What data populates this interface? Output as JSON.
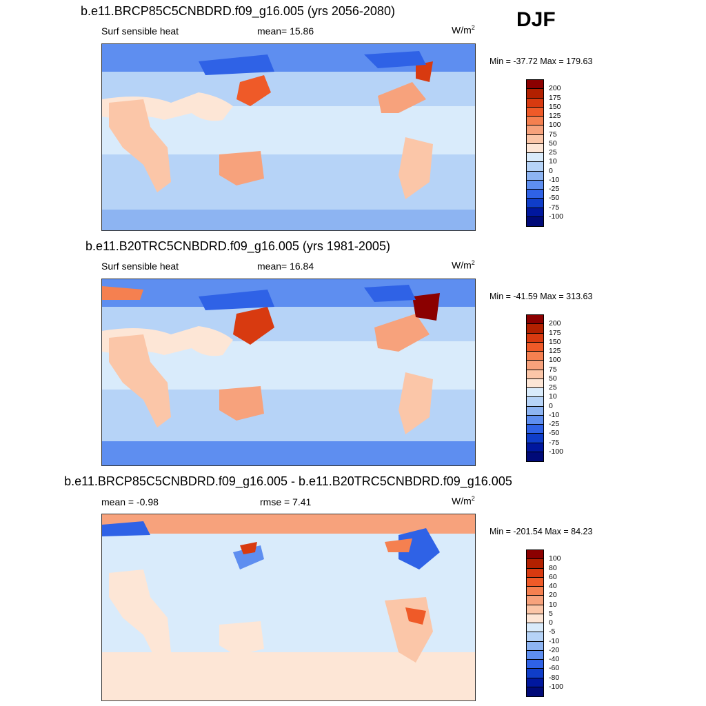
{
  "season": "DJF",
  "panels": [
    {
      "title": "b.e11.BRCP85C5CNBDRD.f09_g16.005 (yrs 2056-2080)",
      "left_label": "Surf sensible heat",
      "center_label": "mean=  15.86",
      "units_base": "W/m",
      "units_exp": "2",
      "minmax": "Min = -37.72 Max = 179.63",
      "colorbar_labels": [
        "200",
        "175",
        "150",
        "125",
        "100",
        "75",
        "50",
        "25",
        "10",
        "0",
        "-10",
        "-25",
        "-50",
        "-75",
        "-100"
      ]
    },
    {
      "title": "b.e11.B20TRC5CNBDRD.f09_g16.005 (yrs 1981-2005)",
      "left_label": "Surf sensible heat",
      "center_label": "mean=  16.84",
      "units_base": "W/m",
      "units_exp": "2",
      "minmax": "Min = -41.59 Max = 313.63",
      "colorbar_labels": [
        "200",
        "175",
        "150",
        "125",
        "100",
        "75",
        "50",
        "25",
        "10",
        "0",
        "-10",
        "-25",
        "-50",
        "-75",
        "-100"
      ]
    },
    {
      "title": "b.e11.BRCP85C5CNBDRD.f09_g16.005 - b.e11.B20TRC5CNBDRD.f09_g16.005",
      "left_label": "mean =  -0.98",
      "center_label": "rmse =   7.41",
      "units_base": "W/m",
      "units_exp": "2",
      "minmax": "Min = -201.54 Max =  84.23",
      "colorbar_labels": [
        "100",
        "80",
        "60",
        "40",
        "20",
        "10",
        "5",
        "0",
        "-5",
        "-10",
        "-20",
        "-40",
        "-60",
        "-80",
        "-100"
      ]
    }
  ],
  "colors": {
    "colorbar_top_to_bottom": [
      "#8b0000",
      "#b22000",
      "#d83a10",
      "#ef5a28",
      "#f58050",
      "#f7a27c",
      "#fbc6a8",
      "#fde6d6",
      "#d9ebfb",
      "#b6d3f7",
      "#8db4f2",
      "#5e8ef0",
      "#2f62e6",
      "#0f3dc9",
      "#00179e",
      "#000a78"
    ],
    "ocean_light": "#d9ebfb",
    "ocean_mid": "#b6d3f7",
    "ocean_blue": "#8db4f2",
    "warm_light": "#fde6d6",
    "coast": "#222222"
  }
}
